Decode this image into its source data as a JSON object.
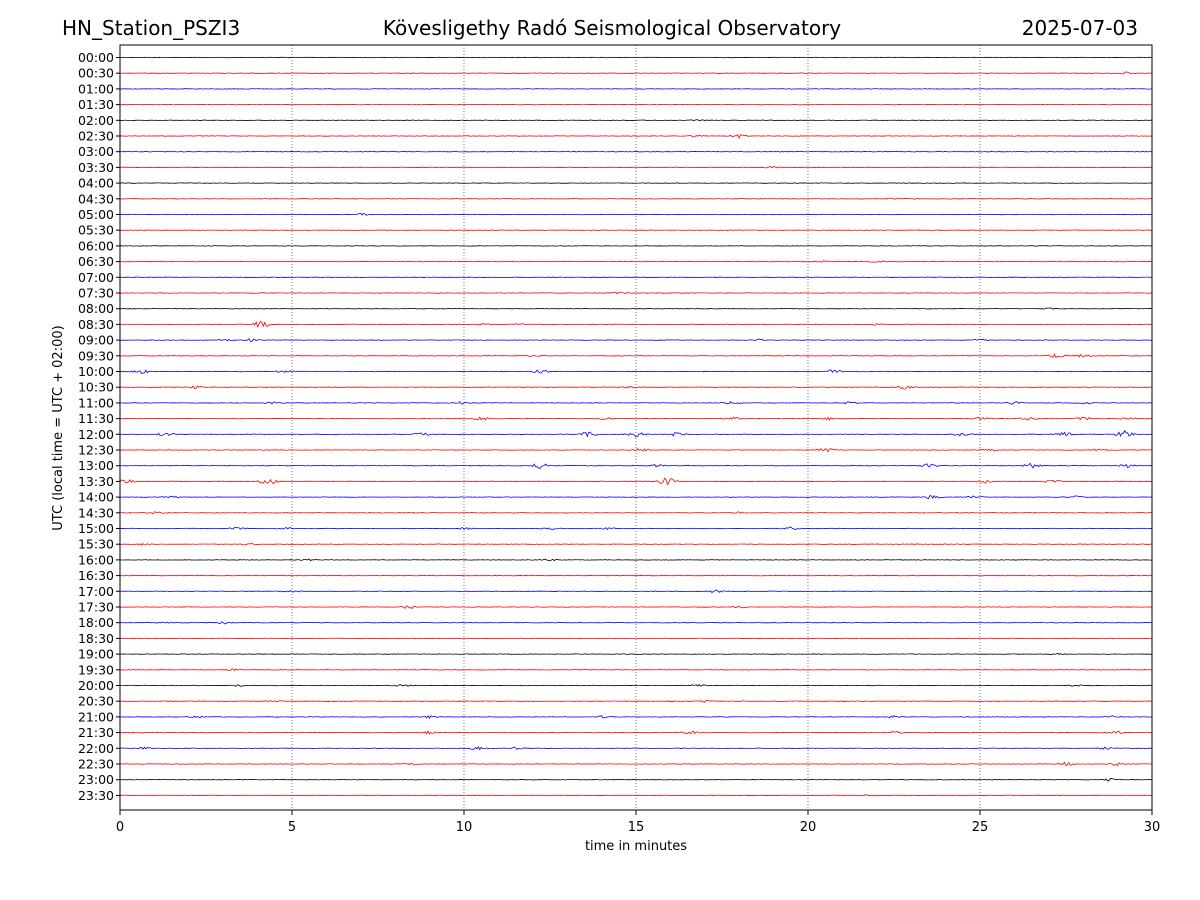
{
  "header": {
    "station": "HN_Station_PSZI3",
    "observatory": "Kövesligethy Radó Seismological Observatory",
    "date": "2025-07-03"
  },
  "chart_data": {
    "type": "line",
    "title": "Kövesligethy Radó Seismological Observatory",
    "xlabel": "time in minutes",
    "ylabel": "UTC (local time = UTC + 02:00)",
    "xlim": [
      0,
      30
    ],
    "x_ticks": [
      0,
      5,
      10,
      15,
      20,
      25,
      30
    ],
    "grid": "vertical dotted at each x tick",
    "trace_colors": [
      "#000000",
      "#ff0000",
      "#0000ff"
    ],
    "rows": [
      {
        "label": "00:00",
        "color": "#000000",
        "events": []
      },
      {
        "label": "00:30",
        "color": "#ff0000",
        "events": [
          [
            29.2,
            0.8
          ]
        ]
      },
      {
        "label": "01:00",
        "color": "#0000ff",
        "events": []
      },
      {
        "label": "01:30",
        "color": "#ff0000",
        "events": []
      },
      {
        "label": "02:00",
        "color": "#000000",
        "events": [
          [
            16.8,
            0.5
          ]
        ]
      },
      {
        "label": "02:30",
        "color": "#ff0000",
        "events": [
          [
            16.8,
            0.6
          ],
          [
            18.0,
            1.2
          ]
        ]
      },
      {
        "label": "03:00",
        "color": "#0000ff",
        "events": []
      },
      {
        "label": "03:30",
        "color": "#ff0000",
        "events": [
          [
            19.0,
            0.4
          ]
        ]
      },
      {
        "label": "04:00",
        "color": "#000000",
        "events": []
      },
      {
        "label": "04:30",
        "color": "#ff0000",
        "events": [
          [
            22.5,
            0.5
          ]
        ]
      },
      {
        "label": "05:00",
        "color": "#0000ff",
        "events": [
          [
            7.0,
            0.8
          ]
        ]
      },
      {
        "label": "05:30",
        "color": "#ff0000",
        "events": []
      },
      {
        "label": "06:00",
        "color": "#000000",
        "events": []
      },
      {
        "label": "06:30",
        "color": "#ff0000",
        "events": [
          [
            20.5,
            0.6
          ],
          [
            22.0,
            0.5
          ]
        ]
      },
      {
        "label": "07:00",
        "color": "#0000ff",
        "events": []
      },
      {
        "label": "07:30",
        "color": "#ff0000",
        "events": [
          [
            4.0,
            0.4
          ],
          [
            14.5,
            0.5
          ]
        ]
      },
      {
        "label": "08:00",
        "color": "#000000",
        "events": [
          [
            27.0,
            0.4
          ]
        ]
      },
      {
        "label": "08:30",
        "color": "#ff0000",
        "events": [
          [
            4.1,
            2.5
          ],
          [
            10.5,
            0.6
          ],
          [
            11.5,
            0.6
          ],
          [
            22.0,
            0.4
          ]
        ]
      },
      {
        "label": "09:00",
        "color": "#0000ff",
        "events": [
          [
            3.1,
            0.7
          ],
          [
            3.8,
            0.9
          ],
          [
            18.6,
            0.6
          ],
          [
            25.0,
            0.7
          ]
        ]
      },
      {
        "label": "09:30",
        "color": "#ff0000",
        "events": [
          [
            12.0,
            0.6
          ],
          [
            27.2,
            1.2
          ],
          [
            28.0,
            1.2
          ]
        ]
      },
      {
        "label": "10:00",
        "color": "#0000ff",
        "events": [
          [
            0.6,
            1.5
          ],
          [
            4.8,
            1.0
          ],
          [
            12.2,
            1.5
          ],
          [
            20.7,
            1.2
          ]
        ]
      },
      {
        "label": "10:30",
        "color": "#ff0000",
        "events": [
          [
            2.2,
            0.8
          ],
          [
            14.8,
            0.7
          ],
          [
            22.8,
            1.3
          ]
        ]
      },
      {
        "label": "11:00",
        "color": "#0000ff",
        "events": [
          [
            4.5,
            0.8
          ],
          [
            9.9,
            0.7
          ],
          [
            17.8,
            0.9
          ],
          [
            21.2,
            0.8
          ],
          [
            26.0,
            0.9
          ],
          [
            28.0,
            0.8
          ]
        ]
      },
      {
        "label": "11:30",
        "color": "#ff0000",
        "events": [
          [
            10.5,
            0.9
          ],
          [
            14.2,
            0.7
          ],
          [
            17.8,
            1.0
          ],
          [
            20.6,
            1.1
          ],
          [
            25.0,
            1.0
          ],
          [
            26.4,
            1.0
          ],
          [
            28.0,
            1.2
          ],
          [
            29.3,
            0.9
          ]
        ]
      },
      {
        "label": "12:00",
        "color": "#0000ff",
        "events": [
          [
            1.3,
            1.5
          ],
          [
            8.8,
            1.0
          ],
          [
            13.6,
            1.5
          ],
          [
            15.0,
            1.5
          ],
          [
            16.2,
            1.2
          ],
          [
            24.5,
            1.2
          ],
          [
            27.5,
            1.4
          ],
          [
            29.2,
            2.2
          ]
        ]
      },
      {
        "label": "12:30",
        "color": "#ff0000",
        "events": [
          [
            15.1,
            1.0
          ],
          [
            20.5,
            1.2
          ],
          [
            25.3,
            0.8
          ],
          [
            28.5,
            0.8
          ]
        ]
      },
      {
        "label": "13:00",
        "color": "#0000ff",
        "events": [
          [
            12.2,
            1.8
          ],
          [
            15.6,
            0.9
          ],
          [
            23.5,
            1.2
          ],
          [
            26.5,
            1.5
          ],
          [
            29.3,
            1.0
          ]
        ]
      },
      {
        "label": "13:30",
        "color": "#ff0000",
        "events": [
          [
            0.2,
            1.2
          ],
          [
            4.3,
            2.2
          ],
          [
            15.9,
            2.5
          ],
          [
            25.2,
            1.0
          ],
          [
            27.1,
            1.2
          ]
        ]
      },
      {
        "label": "14:00",
        "color": "#0000ff",
        "events": [
          [
            1.5,
            0.9
          ],
          [
            23.6,
            1.2
          ],
          [
            24.8,
            0.9
          ],
          [
            27.8,
            0.8
          ]
        ]
      },
      {
        "label": "14:30",
        "color": "#ff0000",
        "events": [
          [
            1.0,
            0.7
          ],
          [
            18.0,
            0.5
          ]
        ]
      },
      {
        "label": "15:00",
        "color": "#0000ff",
        "events": [
          [
            3.4,
            0.9
          ],
          [
            4.8,
            0.8
          ],
          [
            10.0,
            0.8
          ],
          [
            12.5,
            0.7
          ],
          [
            14.2,
            0.7
          ],
          [
            19.5,
            1.0
          ]
        ]
      },
      {
        "label": "15:30",
        "color": "#ff0000",
        "events": [
          [
            0.6,
            0.6
          ],
          [
            3.8,
            0.6
          ]
        ]
      },
      {
        "label": "16:00",
        "color": "#000000",
        "events": [
          [
            5.5,
            0.5
          ],
          [
            12.5,
            0.5
          ]
        ]
      },
      {
        "label": "16:30",
        "color": "#ff0000",
        "events": []
      },
      {
        "label": "17:00",
        "color": "#0000ff",
        "events": [
          [
            5.0,
            0.6
          ],
          [
            17.3,
            1.0
          ]
        ]
      },
      {
        "label": "17:30",
        "color": "#ff0000",
        "events": [
          [
            8.4,
            1.2
          ],
          [
            18.0,
            0.5
          ]
        ]
      },
      {
        "label": "18:00",
        "color": "#0000ff",
        "events": [
          [
            1.2,
            0.5
          ],
          [
            3.0,
            0.8
          ]
        ]
      },
      {
        "label": "18:30",
        "color": "#ff0000",
        "events": []
      },
      {
        "label": "19:00",
        "color": "#000000",
        "events": [
          [
            27.2,
            0.4
          ]
        ]
      },
      {
        "label": "19:30",
        "color": "#ff0000",
        "events": [
          [
            3.3,
            0.5
          ]
        ]
      },
      {
        "label": "20:00",
        "color": "#000000",
        "events": [
          [
            3.4,
            0.6
          ],
          [
            8.2,
            0.7
          ],
          [
            16.8,
            0.7
          ],
          [
            27.8,
            0.8
          ]
        ]
      },
      {
        "label": "20:30",
        "color": "#ff0000",
        "events": [
          [
            4.5,
            0.5
          ],
          [
            17.0,
            0.5
          ]
        ]
      },
      {
        "label": "21:00",
        "color": "#0000ff",
        "events": [
          [
            2.2,
            0.7
          ],
          [
            9.0,
            0.7
          ],
          [
            14.0,
            0.6
          ],
          [
            22.5,
            0.7
          ],
          [
            28.8,
            0.8
          ]
        ]
      },
      {
        "label": "21:30",
        "color": "#ff0000",
        "events": [
          [
            9.0,
            0.8
          ],
          [
            16.6,
            1.0
          ],
          [
            22.5,
            0.9
          ],
          [
            29.0,
            0.8
          ]
        ]
      },
      {
        "label": "22:00",
        "color": "#0000ff",
        "events": [
          [
            0.7,
            0.6
          ],
          [
            10.4,
            0.9
          ],
          [
            11.5,
            0.7
          ],
          [
            28.7,
            0.9
          ]
        ]
      },
      {
        "label": "22:30",
        "color": "#ff0000",
        "events": [
          [
            8.5,
            0.5
          ],
          [
            27.5,
            1.1
          ],
          [
            29.0,
            0.9
          ]
        ]
      },
      {
        "label": "23:00",
        "color": "#000000",
        "events": [
          [
            28.8,
            0.9
          ]
        ]
      },
      {
        "label": "23:30",
        "color": "#ff0000",
        "events": [
          [
            21.8,
            0.5
          ]
        ]
      }
    ]
  }
}
